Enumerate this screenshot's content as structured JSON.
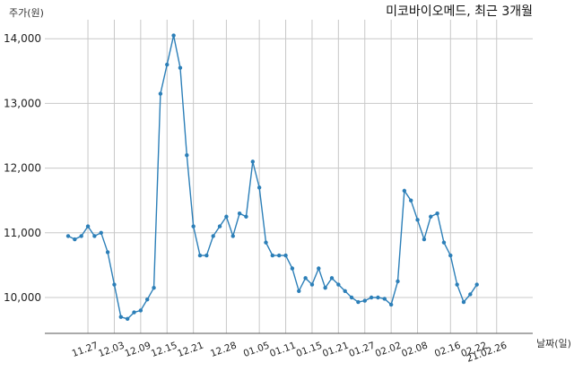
{
  "chart_data": {
    "type": "line",
    "title": "미코바이오메드, 최근 3개월",
    "ylabel": "주가(원)",
    "xlabel": "날짜(일)",
    "ylim": [
      9500,
      14300
    ],
    "yticks": [
      10000,
      11000,
      12000,
      13000,
      14000
    ],
    "ytick_labels": [
      "10,000",
      "11,000",
      "12,000",
      "13,000",
      "14,000"
    ],
    "x_tick_labels": [
      "11.27",
      "12.03",
      "12.09",
      "12.15",
      "12.21",
      "12.28",
      "01.05",
      "01.11",
      "01.15",
      "01.21",
      "01.27",
      "02.02",
      "02.08",
      "02.16",
      "02.22",
      "21.02.26"
    ],
    "x_tick_index": [
      3,
      7,
      11,
      15,
      19,
      24,
      29,
      33,
      37,
      41,
      45,
      49,
      53,
      58,
      62,
      65
    ],
    "grid": true,
    "line_color": "#2c7fb8",
    "series": [
      {
        "values": [
          10950,
          10900,
          10950,
          11100,
          10950,
          11000,
          10700,
          10200,
          9700,
          9670,
          9770,
          9800,
          9970,
          10150,
          13150,
          13600,
          14050,
          13550,
          12200,
          11100,
          10650,
          10650,
          10950,
          11100,
          11250,
          10950,
          11300,
          11250,
          12100,
          11700,
          10850,
          10650,
          10650,
          10650,
          10450,
          10100,
          10300,
          10200,
          10450,
          10150,
          10300,
          10200,
          10100,
          10000,
          9930,
          9950,
          10000,
          10000,
          9980,
          9890,
          10250,
          11650,
          11500,
          11200,
          10900,
          11250,
          11300,
          10850,
          10650,
          10200,
          9930,
          10050,
          10200
        ]
      }
    ]
  }
}
